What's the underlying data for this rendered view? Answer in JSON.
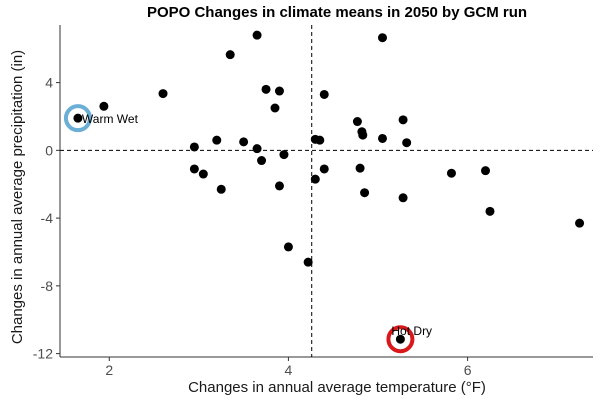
{
  "chart_data": {
    "type": "scatter",
    "title": "POPO Changes in climate means in 2050 by GCM run",
    "xlabel": "Changes in annual average temperature (°F)",
    "ylabel": "Changes in annual average precipitation (in)",
    "xlim": [
      1.45,
      7.4
    ],
    "ylim": [
      -12.2,
      7.4
    ],
    "xticks": [
      2,
      4,
      6
    ],
    "yticks": [
      4,
      0,
      -4,
      -8,
      -12
    ],
    "ref_lines": {
      "vertical_x": 4.26,
      "horizontal_y": 0
    },
    "grid": false,
    "points": [
      {
        "x": 1.94,
        "y": 2.6
      },
      {
        "x": 2.6,
        "y": 3.35
      },
      {
        "x": 2.95,
        "y": 0.2
      },
      {
        "x": 2.95,
        "y": -1.1
      },
      {
        "x": 3.05,
        "y": -1.4
      },
      {
        "x": 3.2,
        "y": 0.6
      },
      {
        "x": 3.25,
        "y": -2.3
      },
      {
        "x": 3.35,
        "y": 5.65
      },
      {
        "x": 3.5,
        "y": 0.5
      },
      {
        "x": 3.65,
        "y": 6.8
      },
      {
        "x": 3.65,
        "y": 0.1
      },
      {
        "x": 3.7,
        "y": -0.6
      },
      {
        "x": 3.75,
        "y": 3.6
      },
      {
        "x": 3.85,
        "y": 2.5
      },
      {
        "x": 3.9,
        "y": 3.5
      },
      {
        "x": 3.9,
        "y": -2.1
      },
      {
        "x": 3.95,
        "y": -0.25
      },
      {
        "x": 4.0,
        "y": -5.7
      },
      {
        "x": 4.22,
        "y": -6.6
      },
      {
        "x": 4.3,
        "y": 0.65
      },
      {
        "x": 4.3,
        "y": -1.7
      },
      {
        "x": 4.35,
        "y": 0.6
      },
      {
        "x": 4.4,
        "y": 3.3
      },
      {
        "x": 4.4,
        "y": -1.1
      },
      {
        "x": 4.77,
        "y": 1.7
      },
      {
        "x": 4.8,
        "y": -1.05
      },
      {
        "x": 4.82,
        "y": 1.1
      },
      {
        "x": 4.83,
        "y": 0.9
      },
      {
        "x": 4.85,
        "y": -2.5
      },
      {
        "x": 5.05,
        "y": 6.65
      },
      {
        "x": 5.05,
        "y": 0.7
      },
      {
        "x": 5.25,
        "y": -11.15
      },
      {
        "x": 5.28,
        "y": 1.8
      },
      {
        "x": 5.28,
        "y": -2.8
      },
      {
        "x": 5.32,
        "y": 0.45
      },
      {
        "x": 5.82,
        "y": -1.35
      },
      {
        "x": 6.2,
        "y": -1.2
      },
      {
        "x": 6.25,
        "y": -3.6
      },
      {
        "x": 7.25,
        "y": -4.3
      },
      {
        "x": 1.65,
        "y": 1.9
      }
    ],
    "annotations": [
      {
        "label": "Warm Wet",
        "x": 1.65,
        "y": 1.9,
        "ring_color": "#6baed6"
      },
      {
        "label": "Hot Dry",
        "x": 5.25,
        "y": -11.15,
        "ring_color": "#d7191c"
      }
    ],
    "point_color": "#000000"
  }
}
